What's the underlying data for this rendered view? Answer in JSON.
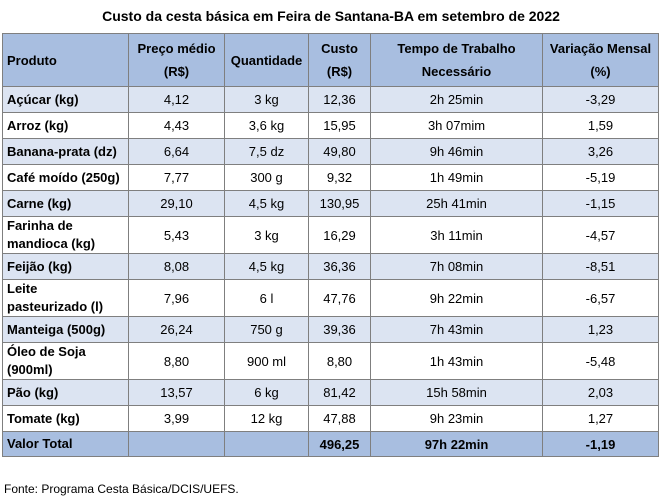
{
  "title": "Custo da cesta básica em Feira de Santana-BA em setembro de 2022",
  "headers": {
    "produto": "Produto",
    "preco_1": "Preço médio",
    "preco_2": "(R$)",
    "quantidade": "Quantidade",
    "custo_1": "Custo",
    "custo_2": "(R$)",
    "tempo_1": "Tempo de Trabalho",
    "tempo_2": "Necessário",
    "variacao_1": "Variação Mensal",
    "variacao_2": "(%)"
  },
  "rows": [
    {
      "produto": "Açúcar (kg)",
      "preco": "4,12",
      "quantidade": "3 kg",
      "custo": "12,36",
      "tempo": "2h 25min",
      "variacao": "-3,29"
    },
    {
      "produto": "Arroz (kg)",
      "preco": "4,43",
      "quantidade": "3,6 kg",
      "custo": "15,95",
      "tempo": "3h 07mim",
      "variacao": "1,59"
    },
    {
      "produto": "Banana-prata (dz)",
      "preco": "6,64",
      "quantidade": "7,5 dz",
      "custo": "49,80",
      "tempo": "9h 46min",
      "variacao": "3,26"
    },
    {
      "produto": "Café moído (250g)",
      "preco": "7,77",
      "quantidade": "300 g",
      "custo": "9,32",
      "tempo": "1h 49min",
      "variacao": "-5,19"
    },
    {
      "produto": "Carne (kg)",
      "preco": "29,10",
      "quantidade": "4,5 kg",
      "custo": "130,95",
      "tempo": "25h 41min",
      "variacao": "-1,15"
    },
    {
      "produto_1": "Farinha de",
      "produto_2": "mandioca (kg)",
      "preco": "5,43",
      "quantidade": "3 kg",
      "custo": "16,29",
      "tempo": "3h 11min",
      "variacao": "-4,57"
    },
    {
      "produto": "Feijão (kg)",
      "preco": "8,08",
      "quantidade": "4,5 kg",
      "custo": "36,36",
      "tempo": "7h 08min",
      "variacao": "-8,51"
    },
    {
      "produto_1": "Leite",
      "produto_2": "pasteurizado (l)",
      "preco": "7,96",
      "quantidade": "6 l",
      "custo": "47,76",
      "tempo": "9h 22min",
      "variacao": "-6,57"
    },
    {
      "produto": "Manteiga (500g)",
      "preco": "26,24",
      "quantidade": "750 g",
      "custo": "39,36",
      "tempo": "7h 43min",
      "variacao": "1,23"
    },
    {
      "produto_1": "Óleo de Soja",
      "produto_2": "(900ml)",
      "preco": "8,80",
      "quantidade": "900 ml",
      "custo": "8,80",
      "tempo": "1h 43min",
      "variacao": "-5,48"
    },
    {
      "produto": "Pão (kg)",
      "preco": "13,57",
      "quantidade": "6 kg",
      "custo": "81,42",
      "tempo": "15h 58min",
      "variacao": "2,03"
    },
    {
      "produto": "Tomate (kg)",
      "preco": "3,99",
      "quantidade": "12 kg",
      "custo": "47,88",
      "tempo": "9h 23min",
      "variacao": "1,27"
    }
  ],
  "total": {
    "label": "Valor Total",
    "custo": "496,25",
    "tempo": "97h 22min",
    "variacao": "-1,19"
  },
  "source": "Fonte: Programa Cesta Básica/DCIS/UEFS."
}
